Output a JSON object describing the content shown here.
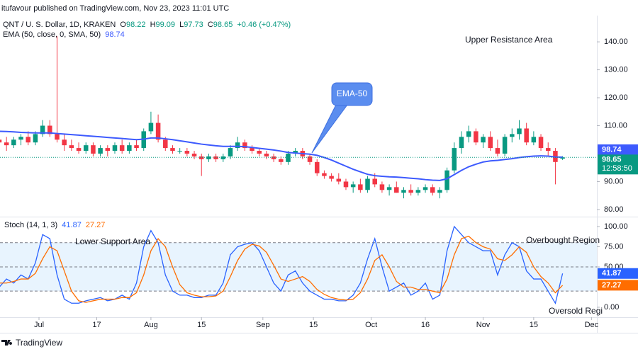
{
  "header": {
    "published": "itufavour published on TradingView.com, Nov 23, 2023 11:01 UTC",
    "brand": "TradingView"
  },
  "chart_data": [
    {
      "type": "candlestick",
      "title": "QNT / U. S. Dollar, 1D, KRAKEN",
      "ohlc_letters": [
        "O",
        "H",
        "L",
        "C"
      ],
      "change_label": "+0.46 (+0.47%)",
      "countdown": "12:58:50",
      "colors": {
        "up": "#089981",
        "down": "#f23645"
      },
      "x": [
        -11,
        -9,
        -7,
        -5,
        -3,
        -1,
        1,
        3,
        5,
        7,
        9,
        11,
        13,
        15,
        17,
        19,
        21,
        23,
        25,
        27,
        29,
        31,
        33,
        35,
        37,
        39,
        41,
        43,
        45,
        47,
        49,
        51,
        53,
        55,
        57,
        59,
        61,
        63,
        65,
        67,
        69,
        71,
        73,
        75,
        77,
        79,
        81,
        83,
        85,
        87,
        89,
        91,
        93,
        95,
        97,
        99,
        101,
        103,
        105,
        107,
        109,
        111,
        113,
        115,
        117,
        119,
        121,
        123,
        125,
        127,
        129,
        131,
        133,
        135,
        137,
        139,
        141,
        143,
        145
      ],
      "open": [
        105,
        104,
        103,
        105,
        106,
        104,
        107,
        110,
        107,
        105,
        103,
        102,
        101,
        103,
        100,
        102,
        101,
        103,
        101,
        103,
        102,
        108,
        111,
        105,
        102,
        101,
        101,
        100,
        99,
        98,
        99,
        98,
        99,
        102,
        104,
        102,
        101,
        100,
        99,
        98,
        97,
        100,
        101,
        99,
        97,
        93,
        92,
        91,
        90,
        88,
        89,
        87,
        91,
        89,
        87,
        88,
        86,
        87,
        86,
        87,
        88,
        86,
        87,
        94,
        102,
        106,
        108,
        104,
        106,
        102,
        100,
        106,
        107,
        109,
        104,
        106,
        102,
        101,
        98.22
      ],
      "high": [
        107,
        106,
        106,
        107,
        108,
        108,
        112,
        112,
        142,
        107,
        105,
        104,
        104,
        104,
        103,
        103,
        104,
        105,
        104,
        105,
        109,
        115,
        114,
        106,
        103,
        102,
        102,
        101,
        100,
        100,
        100,
        100,
        103,
        106,
        105,
        103,
        102,
        101,
        100,
        99,
        101,
        102,
        102,
        100,
        98,
        94,
        93,
        93,
        91,
        90,
        91,
        92,
        93,
        90,
        89,
        90,
        88,
        89,
        88,
        89,
        89,
        88,
        95,
        104,
        108,
        110,
        109,
        107,
        108,
        105,
        107,
        109,
        112,
        111,
        108,
        107,
        104,
        102,
        99.09
      ],
      "low": [
        102,
        101,
        102,
        103,
        103,
        103,
        106,
        106,
        104,
        101,
        101,
        100,
        100,
        99,
        99,
        99,
        100,
        100,
        100,
        101,
        101,
        107,
        104,
        101,
        100,
        100,
        99,
        98,
        92,
        97,
        97,
        97,
        98,
        101,
        101,
        100,
        99,
        98,
        97,
        96,
        96,
        99,
        98,
        96,
        92,
        91,
        90,
        89,
        87,
        86,
        86,
        86,
        88,
        86,
        85,
        86,
        84,
        85,
        85,
        86,
        85,
        84,
        86,
        93,
        100,
        104,
        103,
        102,
        101,
        99,
        99,
        104,
        105,
        103,
        103,
        101,
        99,
        89,
        97.73
      ],
      "close": [
        104,
        103,
        105,
        106,
        104,
        107,
        110,
        107,
        105,
        103,
        102,
        101,
        103,
        100,
        102,
        101,
        103,
        101,
        103,
        102,
        108,
        111,
        105,
        102,
        101,
        101,
        100,
        99,
        98,
        99,
        98,
        99,
        102,
        104,
        102,
        101,
        100,
        99,
        98,
        97,
        100,
        101,
        99,
        97,
        93,
        92,
        91,
        90,
        88,
        89,
        87,
        91,
        89,
        87,
        88,
        86,
        87,
        86,
        87,
        88,
        86,
        87,
        94,
        102,
        106,
        108,
        104,
        106,
        102,
        100,
        106,
        107,
        109,
        104,
        106,
        102,
        101,
        97,
        98.65
      ],
      "overlays": [
        {
          "name": "EMA (50, close, 0, SMA, 50)",
          "color": "#3d5afe",
          "values": [
            108,
            107.9,
            107.8,
            107.6,
            107.5,
            107.4,
            107.4,
            107.4,
            107.2,
            107,
            106.8,
            106.6,
            106.4,
            106.2,
            106,
            105.8,
            105.6,
            105.4,
            105.2,
            105,
            105.2,
            105.6,
            105.6,
            105.3,
            105,
            104.6,
            104.2,
            103.8,
            103.4,
            103.1,
            102.8,
            102.6,
            102.6,
            102.6,
            102.5,
            102.2,
            101.9,
            101.6,
            101.3,
            100.9,
            100.4,
            100.2,
            100,
            99.8,
            99.4,
            98.6,
            97.7,
            96.6,
            95.5,
            94.4,
            93.5,
            92.6,
            92.1,
            91.9,
            91.7,
            91.6,
            91.4,
            91.2,
            91,
            90.7,
            90.5,
            90.4,
            91,
            92.5,
            94,
            95.3,
            96.2,
            97,
            97.4,
            97.6,
            97.9,
            98.2,
            98.6,
            98.9,
            99.1,
            99.2,
            99.1,
            98.8,
            98.74
          ]
        }
      ],
      "xlim": [
        -10.8,
        154.5
      ],
      "ylim": [
        77.7,
        149.4
      ],
      "yticks": [
        {
          "value": 140,
          "label": "140.00"
        },
        {
          "value": 130,
          "label": "130.00"
        },
        {
          "value": 120,
          "label": "120.00"
        },
        {
          "value": 110,
          "label": "110.00"
        },
        {
          "value": 90,
          "label": "90.00"
        },
        {
          "value": 80,
          "label": "80.00"
        }
      ],
      "annotations": [
        "Upper Resistance Area",
        "EMA-50"
      ]
    },
    {
      "type": "line",
      "title": "Stoch (14, 1, 3)",
      "x": [
        -11,
        -9,
        -7,
        -5,
        -3,
        -1,
        1,
        3,
        5,
        7,
        9,
        11,
        13,
        15,
        17,
        19,
        21,
        23,
        25,
        27,
        29,
        31,
        33,
        35,
        37,
        39,
        41,
        43,
        45,
        47,
        49,
        51,
        53,
        55,
        57,
        59,
        61,
        63,
        65,
        67,
        69,
        71,
        73,
        75,
        77,
        79,
        81,
        83,
        85,
        87,
        89,
        91,
        93,
        95,
        97,
        99,
        101,
        103,
        105,
        107,
        109,
        111,
        113,
        115,
        117,
        119,
        121,
        123,
        125,
        127,
        129,
        131,
        133,
        135,
        137,
        139,
        141,
        143,
        145
      ],
      "series": [
        {
          "color": "#2962ff",
          "values": [
            25,
            35,
            30,
            40,
            35,
            55,
            90,
            85,
            40,
            10,
            5,
            5,
            8,
            10,
            12,
            8,
            10,
            15,
            10,
            30,
            75,
            95,
            80,
            40,
            20,
            15,
            15,
            12,
            12,
            15,
            15,
            30,
            65,
            75,
            78,
            80,
            70,
            50,
            30,
            20,
            40,
            45,
            30,
            20,
            15,
            10,
            10,
            8,
            8,
            15,
            30,
            60,
            85,
            50,
            20,
            25,
            30,
            15,
            20,
            30,
            10,
            15,
            70,
            100,
            90,
            80,
            75,
            70,
            70,
            40,
            65,
            80,
            75,
            45,
            35,
            35,
            20,
            5,
            41.87
          ]
        },
        {
          "color": "#ff6d00",
          "values": [
            30,
            30,
            32,
            35,
            35,
            42,
            60,
            75,
            70,
            45,
            20,
            8,
            6,
            8,
            10,
            10,
            10,
            12,
            12,
            18,
            40,
            70,
            85,
            75,
            50,
            28,
            18,
            15,
            13,
            13,
            14,
            20,
            38,
            58,
            72,
            78,
            76,
            68,
            52,
            35,
            32,
            35,
            38,
            32,
            22,
            16,
            12,
            10,
            9,
            10,
            18,
            35,
            58,
            65,
            50,
            32,
            25,
            25,
            22,
            22,
            20,
            18,
            35,
            65,
            85,
            88,
            80,
            75,
            72,
            60,
            58,
            65,
            75,
            68,
            50,
            38,
            30,
            18,
            27.27
          ]
        }
      ],
      "levels": [
        80,
        50,
        20
      ],
      "xlim": [
        -10.8,
        154.5
      ],
      "ylim": [
        -12.3,
        110.5
      ],
      "yticks": [
        {
          "value": 100,
          "label": "100.00"
        },
        {
          "value": 75,
          "label": "75.00"
        },
        {
          "value": 50,
          "label": "50.00"
        },
        {
          "value": 0,
          "label": "0.00"
        }
      ],
      "xticks": [
        {
          "value": 0,
          "label": "Jul"
        },
        {
          "value": 16,
          "label": "17"
        },
        {
          "value": 31,
          "label": "Aug"
        },
        {
          "value": 45,
          "label": "15"
        },
        {
          "value": 62,
          "label": "Sep"
        },
        {
          "value": 76,
          "label": "15"
        },
        {
          "value": 92,
          "label": "Oct"
        },
        {
          "value": 107,
          "label": "16"
        },
        {
          "value": 123,
          "label": "Nov"
        },
        {
          "value": 137,
          "label": "15"
        },
        {
          "value": 153,
          "label": "Dec"
        }
      ],
      "annotations": [
        "Lower Support Area",
        "Overbought Region",
        "Oversold Regi"
      ]
    }
  ]
}
